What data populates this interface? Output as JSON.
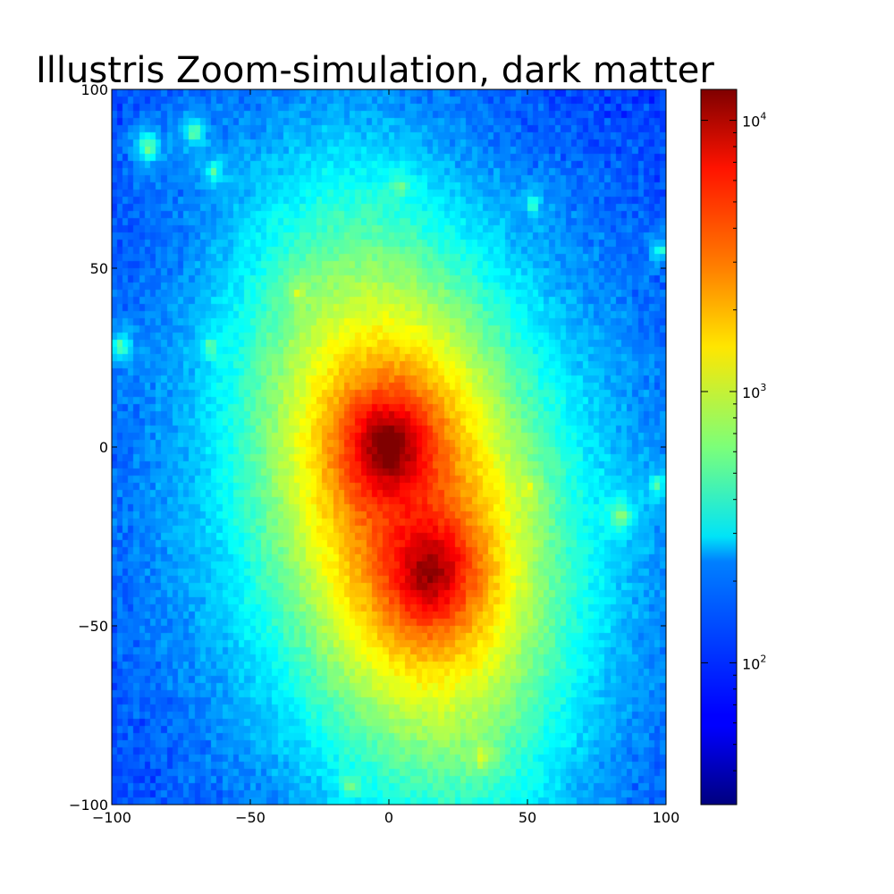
{
  "chart_data": {
    "type": "heatmap",
    "title": "Illustris Zoom-simulation, dark matter",
    "xlabel": "",
    "ylabel": "",
    "xlim": [
      -100,
      100
    ],
    "ylim": [
      -100,
      100
    ],
    "xticks": [
      -100,
      -50,
      0,
      50,
      100
    ],
    "yticks": [
      -100,
      -50,
      0,
      50,
      100
    ],
    "x_tick_labels": [
      "−100",
      "−50",
      "0",
      "50",
      "100"
    ],
    "y_tick_labels": [
      "−100",
      "−50",
      "0",
      "50",
      "100"
    ],
    "grid": false,
    "colormap": "jet",
    "color_scale": "log",
    "color_range": [
      30,
      13000
    ],
    "colorbar": {
      "position": "right",
      "ticks": [
        {
          "value": 100,
          "base": "10",
          "exp": "2"
        },
        {
          "value": 1000,
          "base": "10",
          "exp": "3"
        },
        {
          "value": 10000,
          "base": "10",
          "exp": "4"
        }
      ]
    },
    "grid_bins": 100,
    "background_level": 70,
    "components": [
      {
        "kind": "halo",
        "x": 0,
        "y": 0,
        "peak": 13000,
        "scale": 10
      },
      {
        "kind": "halo",
        "x": 15,
        "y": -35,
        "peak": 10000,
        "scale": 11
      },
      {
        "kind": "envelope",
        "x": 5,
        "y": -15,
        "peak": 1800,
        "scale_x": 45,
        "scale_y": 85,
        "angle_deg": -18
      },
      {
        "kind": "subhalo",
        "x": -87,
        "y": 84,
        "peak": 450,
        "scale": 3
      },
      {
        "kind": "subhalo",
        "x": -70,
        "y": 88,
        "peak": 420,
        "scale": 2.5
      },
      {
        "kind": "subhalo",
        "x": -63,
        "y": 77,
        "peak": 380,
        "scale": 2
      },
      {
        "kind": "subhalo",
        "x": -97,
        "y": 28,
        "peak": 420,
        "scale": 2.5
      },
      {
        "kind": "subhalo",
        "x": -64,
        "y": 28,
        "peak": 350,
        "scale": 2
      },
      {
        "kind": "subhalo",
        "x": 4,
        "y": 73,
        "peak": 380,
        "scale": 2
      },
      {
        "kind": "subhalo",
        "x": 52,
        "y": 68,
        "peak": 300,
        "scale": 2
      },
      {
        "kind": "subhalo",
        "x": 98,
        "y": 55,
        "peak": 280,
        "scale": 2
      },
      {
        "kind": "subhalo",
        "x": 84,
        "y": -19,
        "peak": 600,
        "scale": 2.5
      },
      {
        "kind": "subhalo",
        "x": 97,
        "y": -11,
        "peak": 400,
        "scale": 2
      },
      {
        "kind": "subhalo",
        "x": 51,
        "y": -12,
        "peak": 600,
        "scale": 2
      },
      {
        "kind": "subhalo",
        "x": 34,
        "y": -87,
        "peak": 650,
        "scale": 2.5
      },
      {
        "kind": "subhalo",
        "x": -14,
        "y": -95,
        "peak": 500,
        "scale": 2
      },
      {
        "kind": "subhalo",
        "x": -33,
        "y": 43,
        "peak": 550,
        "scale": 2
      }
    ]
  }
}
